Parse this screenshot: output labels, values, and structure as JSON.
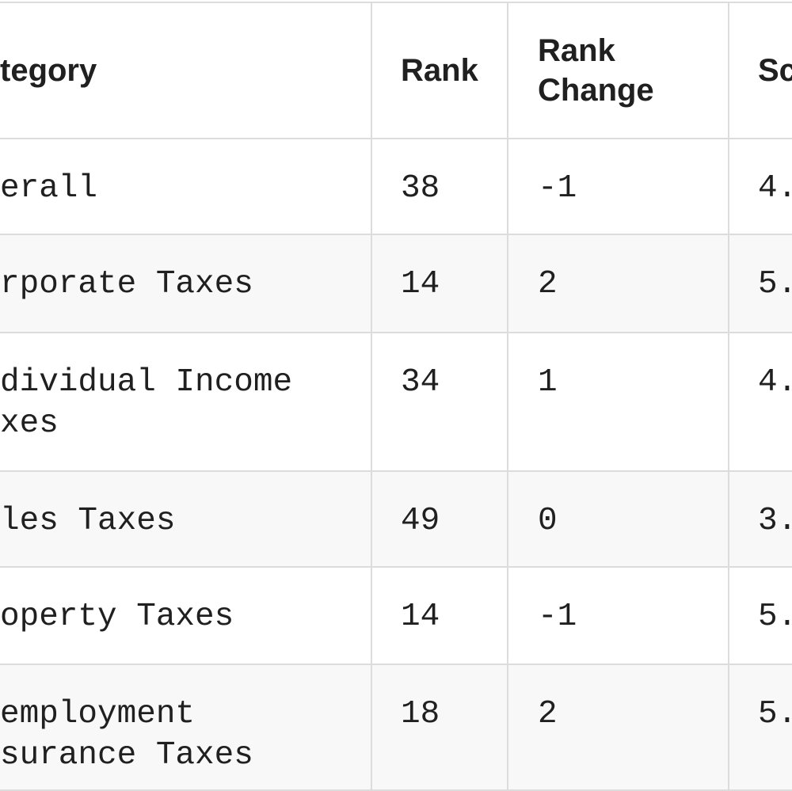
{
  "table": {
    "header": [
      "tegory",
      "Rank",
      [
        "Rank",
        "Change"
      ],
      "Sc"
    ],
    "rows": [
      [
        "erall",
        "38",
        "-1",
        "4."
      ],
      [
        "rporate Taxes",
        "14",
        "2",
        "5."
      ],
      [
        [
          "dividual Income",
          "xes"
        ],
        "34",
        "1",
        "4."
      ],
      [
        "les Taxes",
        "49",
        "0",
        "3."
      ],
      [
        "operty Taxes",
        "14",
        "-1",
        "5."
      ],
      [
        [
          "employment",
          "surance Taxes"
        ],
        "18",
        "2",
        "5."
      ]
    ]
  }
}
